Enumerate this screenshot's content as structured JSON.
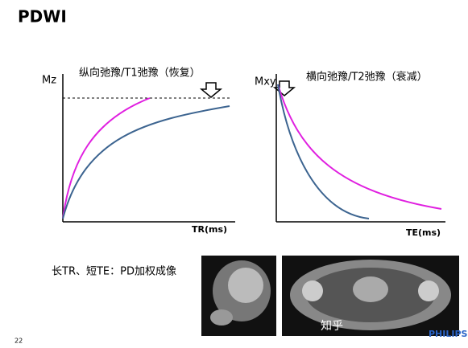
{
  "header": {
    "title": "PDWI"
  },
  "left_plot": {
    "title": "纵向弛豫/T1弛豫（恢复）",
    "y_label": "Mz",
    "x_label": "TR(ms)"
  },
  "right_plot": {
    "title": "横向弛豫/T2弛豫（衰减）",
    "y_label": "Mxy",
    "x_label": "TE(ms)"
  },
  "caption": "长TR、短TE：PD加权成像",
  "watermark": "知乎",
  "brand": "PHILIPS",
  "page_number": "22"
}
